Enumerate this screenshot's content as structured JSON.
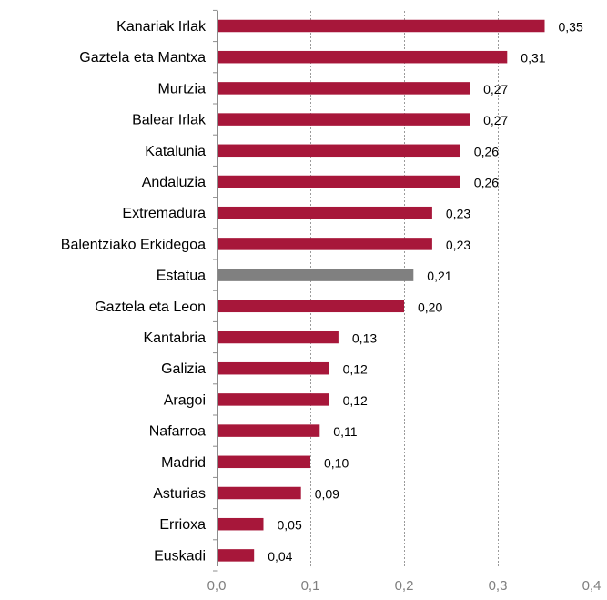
{
  "chart_data": {
    "type": "bar",
    "orientation": "horizontal",
    "categories": [
      "Kanariak Irlak",
      "Gaztela eta Mantxa",
      "Murtzia",
      "Balear Irlak",
      "Katalunia",
      "Andaluzia",
      "Extremadura",
      "Balentziako Erkidegoa",
      "Estatua",
      "Gaztela eta Leon",
      "Kantabria",
      "Galizia",
      "Aragoi",
      "Nafarroa",
      "Madrid",
      "Asturias",
      "Errioxa",
      "Euskadi"
    ],
    "values": [
      0.35,
      0.31,
      0.27,
      0.27,
      0.26,
      0.26,
      0.23,
      0.23,
      0.21,
      0.2,
      0.13,
      0.12,
      0.12,
      0.11,
      0.1,
      0.09,
      0.05,
      0.04
    ],
    "value_labels": [
      "0,35",
      "0,31",
      "0,27",
      "0,27",
      "0,26",
      "0,26",
      "0,23",
      "0,23",
      "0,21",
      "0,20",
      "0,13",
      "0,12",
      "0,12",
      "0,11",
      "0,10",
      "0,09",
      "0,05",
      "0,04"
    ],
    "highlight_category": "Estatua",
    "xlim": [
      0,
      0.4
    ],
    "xticks": [
      0,
      0.1,
      0.2,
      0.3,
      0.4
    ],
    "xtick_labels": [
      "0,0",
      "0,1",
      "0,2",
      "0,3",
      "0,4"
    ],
    "grid": "vertical dashed",
    "colors": {
      "bar": "#a7173a",
      "highlight": "#808080",
      "tick_text": "#7f7f7f"
    }
  }
}
